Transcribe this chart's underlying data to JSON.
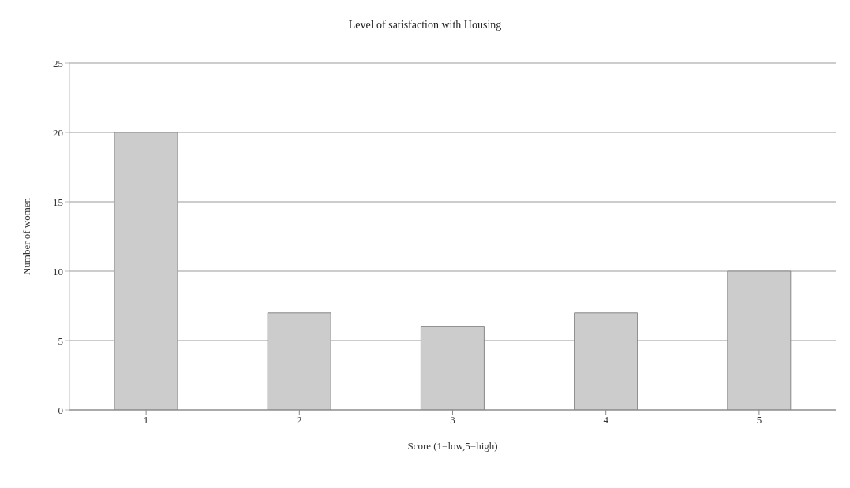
{
  "chart_data": {
    "type": "bar",
    "title": "Level of satisfaction with Housing",
    "xlabel": "Score (1=low,5=high)",
    "ylabel": "Number of women",
    "categories": [
      "1",
      "2",
      "3",
      "4",
      "5"
    ],
    "values": [
      20,
      7,
      6,
      7,
      10
    ],
    "color": "#cccccc",
    "ylim": [
      0,
      25
    ],
    "yticks": [
      0,
      5,
      10,
      15,
      20,
      25
    ],
    "grid": "y",
    "legend": false
  }
}
